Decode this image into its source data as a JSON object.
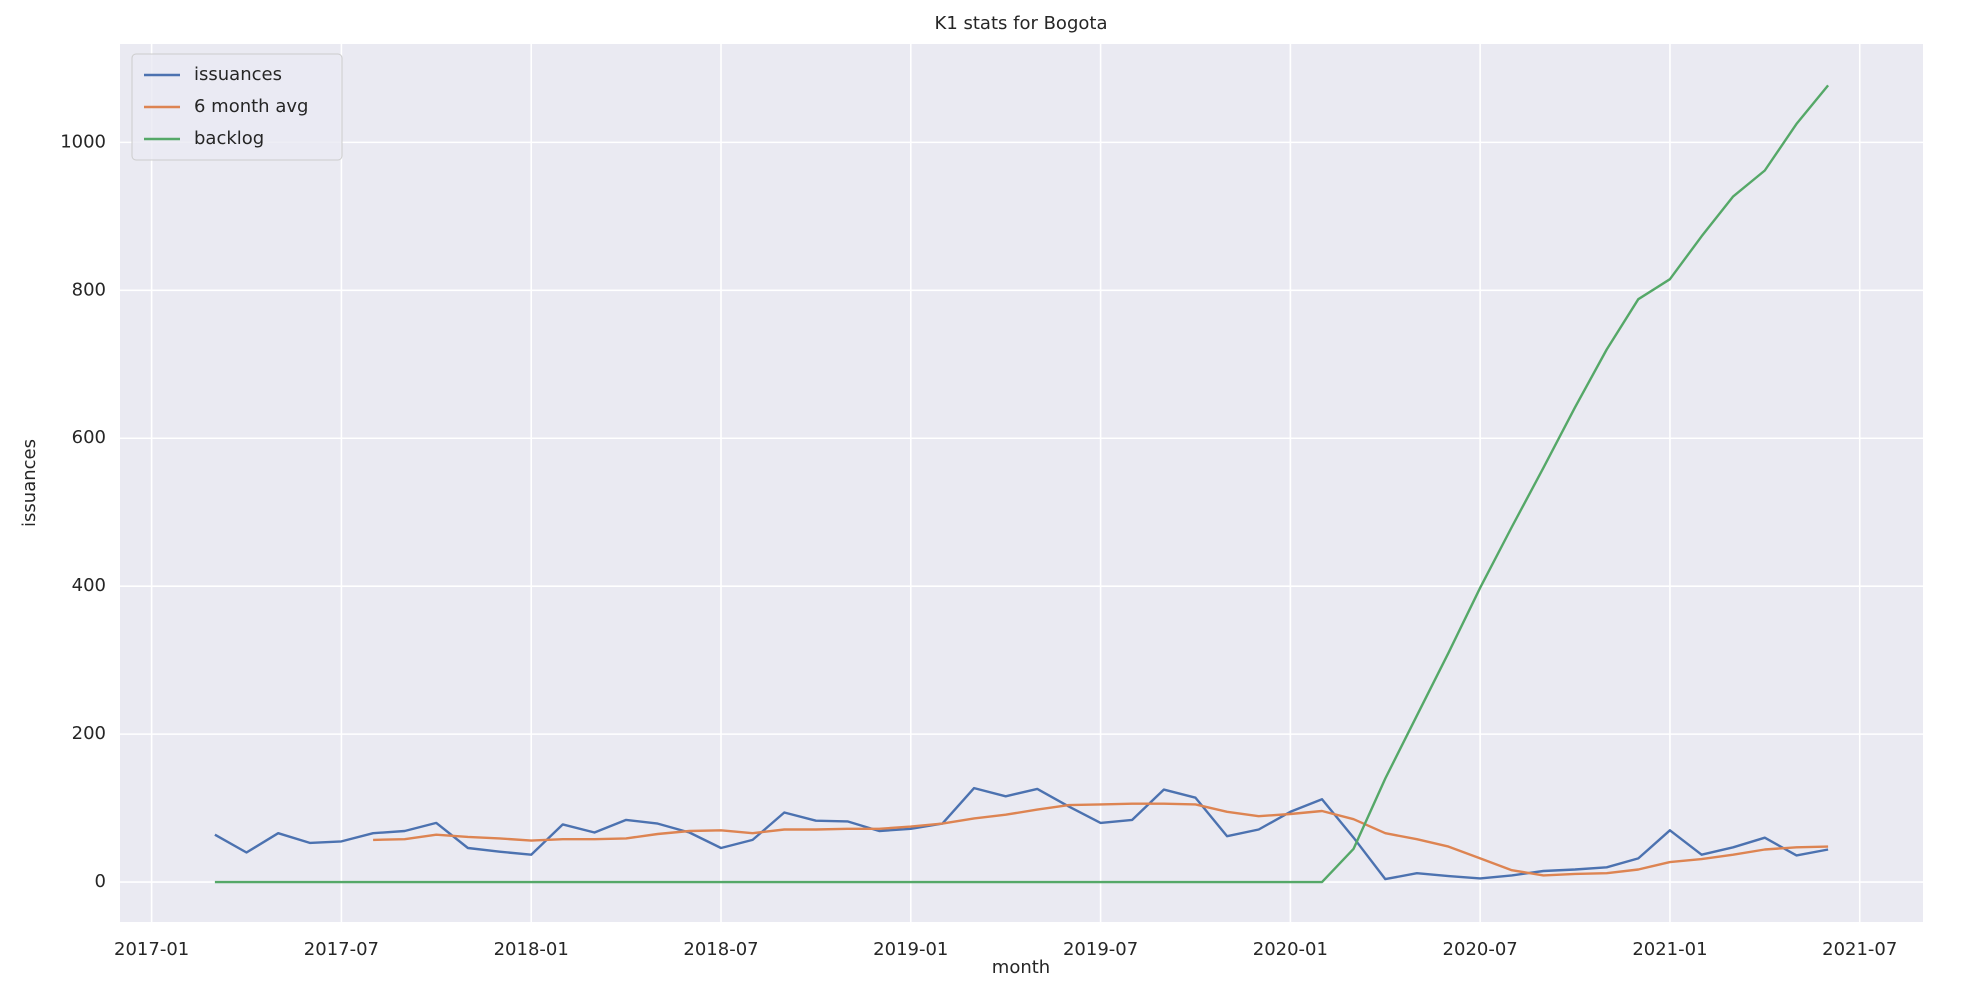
{
  "chart_data": {
    "type": "line",
    "title": "K1 stats for Bogota",
    "x_label": "month",
    "y_label": "issuances",
    "x": [
      "2017-03",
      "2017-04",
      "2017-05",
      "2017-06",
      "2017-07",
      "2017-08",
      "2017-09",
      "2017-10",
      "2017-11",
      "2017-12",
      "2018-01",
      "2018-02",
      "2018-03",
      "2018-04",
      "2018-05",
      "2018-06",
      "2018-07",
      "2018-08",
      "2018-09",
      "2018-10",
      "2018-11",
      "2018-12",
      "2019-01",
      "2019-02",
      "2019-03",
      "2019-04",
      "2019-05",
      "2019-06",
      "2019-07",
      "2019-08",
      "2019-09",
      "2019-10",
      "2019-11",
      "2019-12",
      "2020-01",
      "2020-02",
      "2020-03",
      "2020-04",
      "2020-05",
      "2020-06",
      "2020-07",
      "2020-08",
      "2020-09",
      "2020-10",
      "2020-11",
      "2020-12",
      "2021-01",
      "2021-02",
      "2021-03",
      "2021-04",
      "2021-05",
      "2021-06"
    ],
    "series": [
      {
        "name": "issuances",
        "color": "#4c72b0",
        "values": [
          64,
          40,
          66,
          53,
          55,
          66,
          69,
          80,
          46,
          41,
          37,
          78,
          67,
          84,
          79,
          67,
          46,
          57,
          94,
          83,
          82,
          69,
          72,
          79,
          127,
          116,
          126,
          102,
          80,
          84,
          125,
          114,
          62,
          71,
          95,
          112,
          60,
          4,
          12,
          8,
          5,
          9,
          15,
          17,
          20,
          32,
          70,
          37,
          47,
          60,
          36,
          44
        ]
      },
      {
        "name": "6 month avg",
        "color": "#dd8452",
        "values": [
          null,
          null,
          null,
          null,
          null,
          57,
          58,
          64,
          61,
          59,
          56,
          58,
          58,
          59,
          65,
          69,
          70,
          66,
          71,
          71,
          72,
          72,
          75,
          79,
          86,
          91,
          98,
          104,
          105,
          106,
          106,
          105,
          95,
          89,
          92,
          96,
          85,
          66,
          58,
          48,
          32,
          16,
          9,
          11,
          12,
          17,
          27,
          31,
          37,
          44,
          47,
          48
        ]
      },
      {
        "name": "backlog",
        "color": "#55a868",
        "values": [
          0,
          0,
          0,
          0,
          0,
          0,
          0,
          0,
          0,
          0,
          0,
          0,
          0,
          0,
          0,
          0,
          0,
          0,
          0,
          0,
          0,
          0,
          0,
          0,
          0,
          0,
          0,
          0,
          0,
          0,
          0,
          0,
          0,
          0,
          0,
          0,
          45,
          140,
          225,
          310,
          398,
          480,
          560,
          642,
          720,
          788,
          815,
          873,
          927,
          962,
          1025,
          1077
        ]
      }
    ],
    "xlim": [
      "2016-12",
      "2021-09"
    ],
    "xticks": [
      "2017-01",
      "2017-07",
      "2018-01",
      "2018-07",
      "2019-01",
      "2019-07",
      "2020-01",
      "2020-07",
      "2021-01",
      "2021-07"
    ],
    "ylim": [
      -54,
      1133
    ],
    "yticks": [
      0,
      200,
      400,
      600,
      800,
      1000
    ],
    "grid": true,
    "legend": "upper-left"
  }
}
